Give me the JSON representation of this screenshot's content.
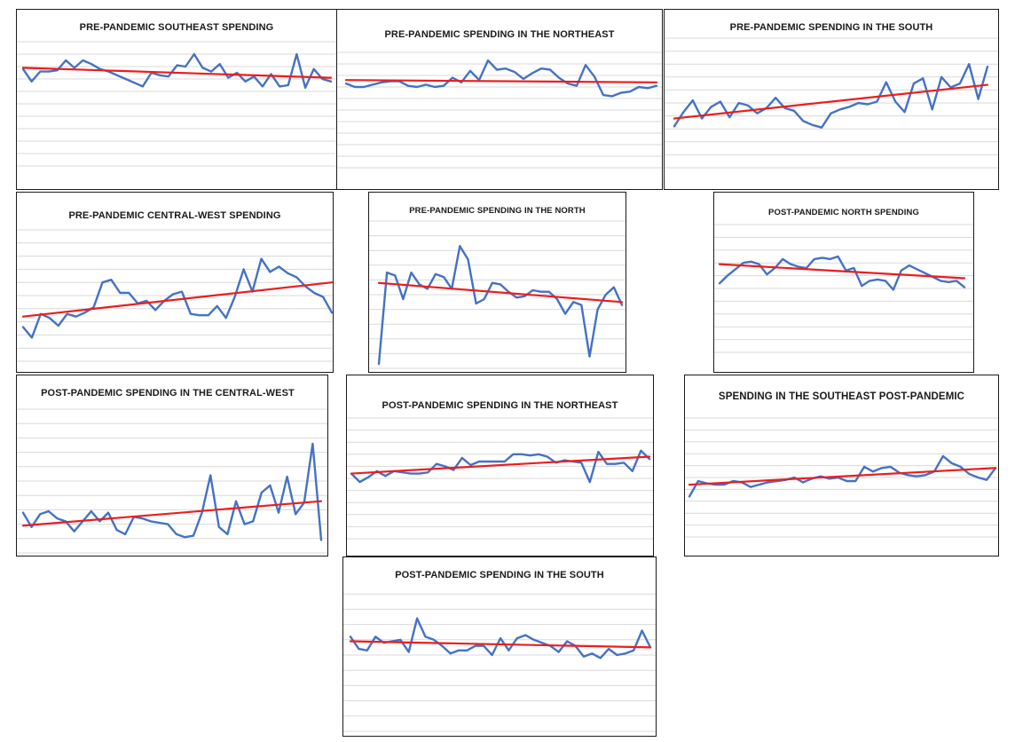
{
  "colors": {
    "series": "#4472c4",
    "trend": "#ee1c1c",
    "grid": "#d9d9d9"
  },
  "chart_data": [
    {
      "type": "line",
      "title": "PRE-PANDEMIC SOUTHEAST SPENDING",
      "grid": true,
      "ylim": [
        0,
        10
      ],
      "values": [
        7.8,
        6.8,
        7.6,
        7.6,
        7.7,
        8.5,
        7.9,
        8.5,
        8.2,
        7.8,
        7.6,
        7.3,
        7.0,
        6.7,
        6.4,
        7.5,
        7.3,
        7.2,
        8.1,
        8.0,
        9.0,
        7.9,
        7.6,
        8.2,
        7.1,
        7.5,
        6.8,
        7.2,
        6.4,
        7.4,
        6.4,
        6.5,
        9.0,
        6.3,
        7.8,
        7.0,
        6.8
      ],
      "trend": [
        7.9,
        7.1
      ]
    },
    {
      "type": "line",
      "title": "PRE-PANDEMIC SPENDING IN THE NORTHEAST",
      "grid": true,
      "ylim": [
        0,
        10
      ],
      "values": [
        7.3,
        7.0,
        7.0,
        7.2,
        7.4,
        7.5,
        7.5,
        7.1,
        7.0,
        7.2,
        7.0,
        7.1,
        7.8,
        7.4,
        8.4,
        7.6,
        9.3,
        8.5,
        8.6,
        8.3,
        7.7,
        8.2,
        8.6,
        8.5,
        7.8,
        7.3,
        7.1,
        8.9,
        7.9,
        6.3,
        6.2,
        6.5,
        6.6,
        7.0,
        6.9,
        7.1
      ],
      "trend": [
        7.6,
        7.4
      ]
    },
    {
      "type": "line",
      "title": "PRE-PANDEMIC SPENDING IN THE SOUTH",
      "grid": true,
      "ylim": [
        0,
        10
      ],
      "values": [
        3.2,
        4.3,
        5.2,
        3.8,
        4.7,
        5.1,
        3.9,
        5.0,
        4.8,
        4.2,
        4.6,
        5.4,
        4.6,
        4.4,
        3.6,
        3.3,
        3.1,
        4.2,
        4.5,
        4.7,
        5.0,
        4.9,
        5.1,
        6.6,
        5.1,
        4.3,
        6.5,
        6.9,
        4.5,
        7.0,
        6.2,
        6.5,
        8.0,
        5.3,
        7.8
      ],
      "trend": [
        3.8,
        6.4
      ]
    },
    {
      "type": "line",
      "title": "PRE-PANDEMIC CENTRAL-WEST SPENDING",
      "grid": true,
      "ylim": [
        0,
        10
      ],
      "values": [
        2.6,
        1.8,
        3.6,
        3.3,
        2.7,
        3.6,
        3.4,
        3.7,
        4.1,
        6.0,
        6.2,
        5.2,
        5.2,
        4.4,
        4.6,
        3.9,
        4.6,
        5.1,
        5.3,
        3.6,
        3.5,
        3.5,
        4.2,
        3.3,
        4.9,
        7.0,
        5.3,
        7.8,
        6.8,
        7.2,
        6.7,
        6.4,
        5.7,
        5.2,
        4.9,
        3.7
      ],
      "trend": [
        3.4,
        6.0
      ]
    },
    {
      "type": "line",
      "title": "PRE-PANDEMIC SPENDING IN THE NORTH",
      "grid": true,
      "ylim": [
        0,
        10
      ],
      "values": [
        0.3,
        6.5,
        6.3,
        4.7,
        6.5,
        5.7,
        5.4,
        6.4,
        6.2,
        5.4,
        8.3,
        7.4,
        4.4,
        4.7,
        5.8,
        5.7,
        5.2,
        4.8,
        4.9,
        5.3,
        5.2,
        5.2,
        4.7,
        3.7,
        4.5,
        4.3,
        0.8,
        4.0,
        5.0,
        5.5,
        4.3
      ],
      "trend": [
        5.8,
        4.5
      ]
    },
    {
      "type": "line",
      "title": "POST-PANDEMIC NORTH SPENDING",
      "grid": true,
      "ylim": [
        0,
        10
      ],
      "values": [
        5.4,
        6.0,
        6.5,
        7.0,
        7.1,
        6.9,
        6.1,
        6.6,
        7.3,
        6.9,
        6.7,
        6.6,
        7.3,
        7.4,
        7.3,
        7.5,
        6.4,
        6.6,
        5.2,
        5.6,
        5.7,
        5.6,
        4.9,
        6.4,
        6.8,
        6.5,
        6.2,
        5.9,
        5.6,
        5.5,
        5.6,
        5.1
      ],
      "trend": [
        6.9,
        5.8
      ]
    },
    {
      "type": "line",
      "title": "POST-PANDEMIC SPENDING IN THE CENTRAL-WEST",
      "grid": true,
      "ylim": [
        0,
        10
      ],
      "values": [
        2.8,
        1.8,
        2.7,
        2.9,
        2.4,
        2.2,
        1.5,
        2.2,
        2.9,
        2.2,
        2.8,
        1.6,
        1.3,
        2.5,
        2.4,
        2.2,
        2.1,
        2.0,
        1.3,
        1.1,
        1.2,
        2.8,
        5.4,
        1.8,
        1.3,
        3.6,
        2.0,
        2.2,
        4.2,
        4.7,
        2.8,
        5.3,
        2.7,
        3.5,
        7.6,
        0.9
      ],
      "trend": [
        1.9,
        3.6
      ]
    },
    {
      "type": "line",
      "title": "POST-PANDEMIC SPENDING IN THE NORTHEAST",
      "grid": true,
      "ylim": [
        0,
        10
      ],
      "values": [
        5.4,
        4.7,
        5.1,
        5.6,
        5.2,
        5.6,
        5.5,
        5.4,
        5.4,
        5.5,
        6.2,
        6.0,
        5.7,
        6.7,
        6.1,
        6.4,
        6.4,
        6.4,
        6.4,
        7.0,
        7.0,
        6.9,
        7.0,
        6.8,
        6.3,
        6.5,
        6.4,
        6.3,
        4.7,
        7.2,
        6.2,
        6.2,
        6.3,
        5.6,
        7.3,
        6.6
      ],
      "trend": [
        5.4,
        6.8
      ]
    },
    {
      "type": "line",
      "title": "SPENDING IN THE SOUTHEAST POST-PANDEMIC",
      "grid": true,
      "ylim": [
        0,
        10
      ],
      "values": [
        3.4,
        4.7,
        4.5,
        4.4,
        4.4,
        4.7,
        4.6,
        4.2,
        4.4,
        4.6,
        4.7,
        4.8,
        5.0,
        4.6,
        4.9,
        5.1,
        4.9,
        5.0,
        4.7,
        4.7,
        5.9,
        5.5,
        5.8,
        5.9,
        5.4,
        5.2,
        5.1,
        5.2,
        5.5,
        6.8,
        6.2,
        5.9,
        5.3,
        5.0,
        4.8,
        5.8
      ],
      "trend": [
        4.4,
        5.8
      ]
    },
    {
      "type": "line",
      "title": "POST-PANDEMIC SPENDING IN THE SOUTH",
      "grid": true,
      "ylim": [
        0,
        10
      ],
      "values": [
        6.2,
        5.4,
        5.3,
        6.2,
        5.8,
        5.9,
        6.0,
        5.2,
        7.4,
        6.2,
        6.0,
        5.6,
        5.1,
        5.3,
        5.3,
        5.6,
        5.6,
        5.0,
        6.1,
        5.3,
        6.1,
        6.3,
        6.0,
        5.8,
        5.6,
        5.2,
        5.9,
        5.6,
        4.9,
        5.1,
        4.8,
        5.4,
        5.0,
        5.1,
        5.3,
        6.6,
        5.5
      ],
      "trend": [
        5.9,
        5.5
      ]
    }
  ]
}
